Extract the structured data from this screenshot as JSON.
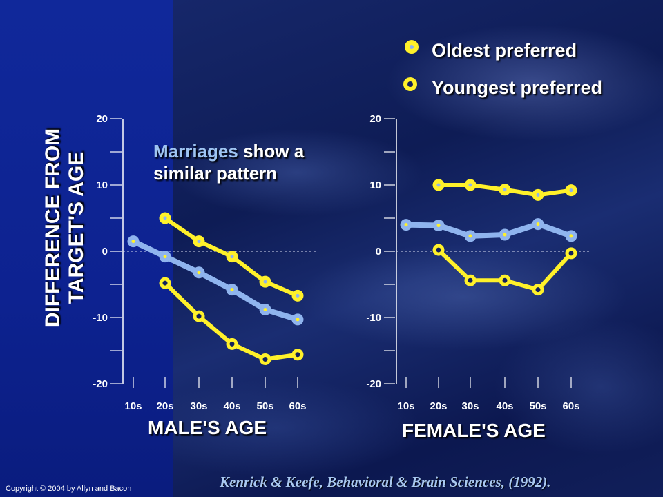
{
  "legend": {
    "oldest_label": "Oldest preferred",
    "youngest_label": "Youngest preferred"
  },
  "y_axis_title": {
    "line1": "DIFFERENCE FROM",
    "line2": "TARGET'S AGE"
  },
  "note": {
    "highlight": "Marriages",
    "rest_line1": " show a",
    "line2": "similar pattern"
  },
  "copyright": "Copyright © 2004 by Allyn and Bacon",
  "citation": "Kenrick & Keefe, Behavioral & Brain Sciences, (1992).",
  "colors": {
    "yellow": "#fff12a",
    "blue": "#8fb4ee",
    "panel": "#10289a",
    "axis": "#ffffff"
  },
  "chart_data": [
    {
      "type": "line",
      "xlabel": "MALE'S AGE",
      "categories": [
        "10s",
        "20s",
        "30s",
        "40s",
        "50s",
        "60s"
      ],
      "ylim": [
        -20,
        20
      ],
      "yticks": [
        -20,
        -10,
        0,
        10,
        20
      ],
      "zero_line": true,
      "series": [
        {
          "role": "oldest",
          "values": [
            null,
            5,
            1.5,
            -0.8,
            -4.6,
            -6.7
          ],
          "color": "#fff12a",
          "marker": "filled"
        },
        {
          "role": "marriages",
          "values": [
            1.5,
            -0.8,
            -3.2,
            -5.8,
            -8.8,
            -10.3
          ],
          "color": "#8fb4ee",
          "marker": "filled"
        },
        {
          "role": "youngest",
          "values": [
            null,
            -4.8,
            -9.8,
            -14,
            -16.3,
            -15.6
          ],
          "color": "#fff12a",
          "marker": "ring"
        }
      ]
    },
    {
      "type": "line",
      "xlabel": "FEMALE'S AGE",
      "categories": [
        "10s",
        "20s",
        "30s",
        "40s",
        "50s",
        "60s"
      ],
      "ylim": [
        -20,
        20
      ],
      "yticks": [
        -20,
        -10,
        0,
        10,
        20
      ],
      "zero_line": true,
      "series": [
        {
          "role": "oldest",
          "values": [
            null,
            10,
            10,
            9.3,
            8.5,
            9.2
          ],
          "color": "#fff12a",
          "marker": "filled"
        },
        {
          "role": "marriages",
          "values": [
            4,
            3.9,
            2.3,
            2.5,
            4.1,
            2.3
          ],
          "color": "#8fb4ee",
          "marker": "filled"
        },
        {
          "role": "youngest",
          "values": [
            null,
            0.2,
            -4.4,
            -4.4,
            -5.8,
            -0.3
          ],
          "color": "#fff12a",
          "marker": "ring"
        }
      ]
    }
  ]
}
